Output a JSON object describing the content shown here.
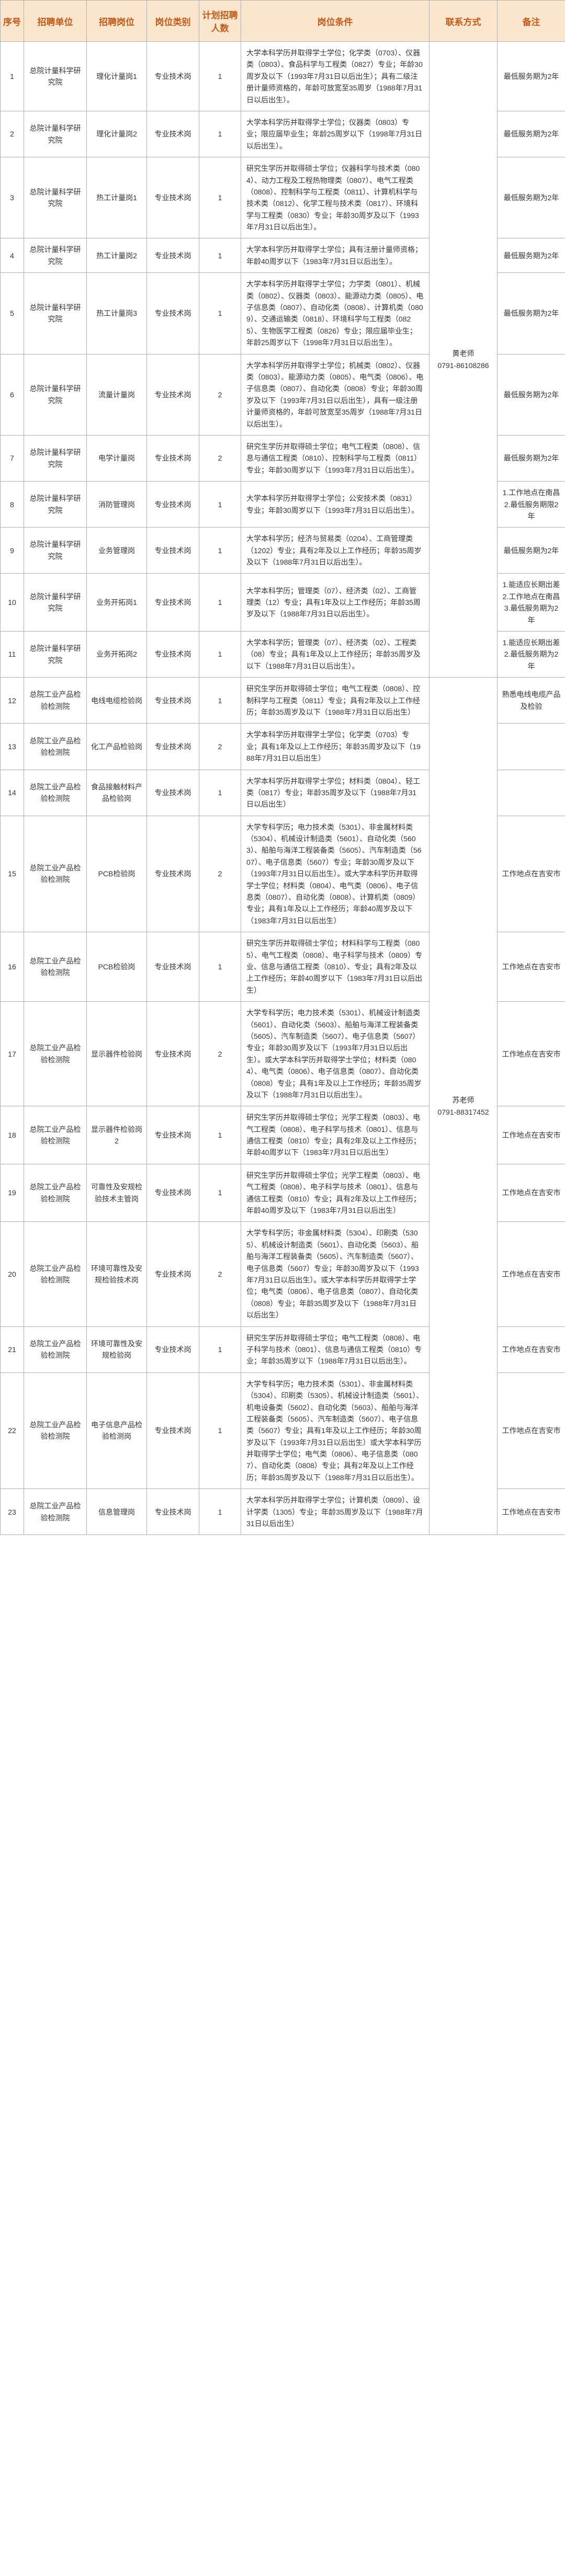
{
  "headers": [
    "序号",
    "招聘单位",
    "招聘岗位",
    "岗位类别",
    "计划招聘人数",
    "岗位条件",
    "联系方式",
    "备注"
  ],
  "rows": [
    {
      "idx": "1",
      "unit": "总院计量科学研究院",
      "post": "理化计量岗1",
      "type": "专业技术岗",
      "num": "1",
      "cond": "大学本科学历并取得学士学位；化学类（0703）、仪器类（0803）、食品科学与工程类（0827）专业；年龄30周岁及以下（1993年7月31日以后出生）；具有二级注册计量师资格的，年龄可放宽至35周岁（1988年7月31日以后出生）。",
      "note": "最低服务期为2年"
    },
    {
      "idx": "2",
      "unit": "总院计量科学研究院",
      "post": "理化计量岗2",
      "type": "专业技术岗",
      "num": "1",
      "cond": "大学本科学历并取得学士学位；仪器类（0803）专业；限应届毕业生；年龄25周岁以下（1998年7月31日以后出生）。",
      "note": "最低服务期为2年"
    },
    {
      "idx": "3",
      "unit": "总院计量科学研究院",
      "post": "热工计量岗1",
      "type": "专业技术岗",
      "num": "1",
      "cond": "研究生学历并取得硕士学位；仪器科学与技术类（0804）、动力工程及工程热物理类（0807）、电气工程类（0808）、控制科学与工程类（0811）、计算机科学与技术类（0812）、化学工程与技术类（0817）、环境科学与工程类（0830）专业；年龄30周岁及以下（1993年7月31日以后出生）。",
      "note": "最低服务期为2年"
    },
    {
      "idx": "4",
      "unit": "总院计量科学研究院",
      "post": "热工计量岗2",
      "type": "专业技术岗",
      "num": "1",
      "cond": "大学本科学历并取得学士学位；具有注册计量师资格；年龄40周岁以下（1983年7月31日以后出生）。",
      "note": "最低服务期为2年"
    },
    {
      "idx": "5",
      "unit": "总院计量科学研究院",
      "post": "热工计量岗3",
      "type": "专业技术岗",
      "num": "1",
      "cond": "大学本科学历并取得学士学位；力学类（0801）、机械类（0802）、仪器类（0803）、能源动力类（0805）、电子信息类（0807）、自动化类（0808）、计算机类（0809）、交通运输类（0818）、环境科学与工程类（0825）、生物医学工程类（0826）专业；限应届毕业生；年龄25周岁以下（1998年7月31日以后出生）。",
      "note": "最低服务期为2年"
    },
    {
      "idx": "6",
      "unit": "总院计量科学研究院",
      "post": "流量计量岗",
      "type": "专业技术岗",
      "num": "2",
      "cond": "大学本科学历并取得学士学位；机械类（0802）、仪器类（0803）、能源动力类（0805）、电气类（0806）、电子信息类（0807）、自动化类（0808）专业；年龄30周岁及以下（1993年7月31日以后出生），具有一级注册计量师资格的，年龄可放宽至35周岁（1988年7月31日以后出生）。",
      "note": "最低服务期为2年"
    },
    {
      "idx": "7",
      "unit": "总院计量科学研究院",
      "post": "电学计量岗",
      "type": "专业技术岗",
      "num": "2",
      "cond": "研究生学历并取得硕士学位；电气工程类（0808）、信息与通信工程类（0810）、控制科学与工程类（0811）专业；年龄30周岁以下（1993年7月31日以后出生）。",
      "note": "最低服务期为2年"
    },
    {
      "idx": "8",
      "unit": "总院计量科学研究院",
      "post": "消防管理岗",
      "type": "专业技术岗",
      "num": "1",
      "cond": "大学本科学历并取得学士学位；公安技术类（0831）专业；年龄30周岁以下（1993年7月31日以后出生）。",
      "note": "1.工作地点在南昌 2.最低服务期限2年"
    },
    {
      "idx": "9",
      "unit": "总院计量科学研究院",
      "post": "业务管理岗",
      "type": "专业技术岗",
      "num": "1",
      "cond": "大学本科学历；经济与贸易类（0204）、工商管理类（1202）专业；具有2年及以上工作经历；年龄35周岁及以下（1988年7月31日以后出生）。",
      "note": "最低服务期为2年"
    },
    {
      "idx": "10",
      "unit": "总院计量科学研究院",
      "post": "业务开拓岗1",
      "type": "专业技术岗",
      "num": "1",
      "cond": "大学本科学历；管理类（07）、经济类（02）、工商管理类（12）专业；具有1年及以上工作经历；年龄35周岁及以下（1988年7月31日以后出生）。",
      "note": "1.能适应长期出差 2.工作地点在南昌 3.最低服务期为2年"
    },
    {
      "idx": "11",
      "unit": "总院计量科学研究院",
      "post": "业务开拓岗2",
      "type": "专业技术岗",
      "num": "1",
      "cond": "大学本科学历；管理类（07）、经济类（02）、工程类（08）专业；具有1年及以上工作经历；年龄35周岁及以下（1988年7月31日以后出生）。",
      "note": "1.能适应长期出差 2.最低服务期为2年"
    },
    {
      "idx": "12",
      "unit": "总院工业产品检验检测院",
      "post": "电线电缆检验岗",
      "type": "专业技术岗",
      "num": "1",
      "cond": "研究生学历并取得硕士学位；电气工程类（0808）、控制科学与工程类（0811）专业；具有2年及以上工作经历；年龄35周岁及以下（1988年7月31日以后出生）",
      "note": "熟悉电线电缆产品及检验"
    },
    {
      "idx": "13",
      "unit": "总院工业产品检验检测院",
      "post": "化工产品检验岗",
      "type": "专业技术岗",
      "num": "2",
      "cond": "大学本科学历并取得学士学位；化学类（0703）专业；具有1年及以上工作经历；年龄35周岁及以下（1988年7月31日以后出生）",
      "note": ""
    },
    {
      "idx": "14",
      "unit": "总院工业产品检验检测院",
      "post": "食品接触材料产品检验岗",
      "type": "专业技术岗",
      "num": "1",
      "cond": "大学本科学历并取得学士学位；材料类（0804）、轻工类（0817）专业；年龄35周岁及以下（1988年7月31日以后出生）",
      "note": ""
    },
    {
      "idx": "15",
      "unit": "总院工业产品检验检测院",
      "post": "PCB检验岗",
      "type": "专业技术岗",
      "num": "2",
      "cond": "大学专科学历；电力技术类（5301）、非金属材料类（5304）、机械设计制造类（5601）、自动化类（5603）、船舶与海洋工程装备类（5605）、汽车制造类（5607）、电子信息类（5607）专业；年龄30周岁及以下（1993年7月31日以后出生）。或大学本科学历并取得学士学位；材料类（0804）、电气类（0806）、电子信息类（0807）、自动化类（0808）、计算机类（0809）专业；具有1年及以上工作经历；年龄40周岁及以下（1983年7月31日以后出生）",
      "note": "工作地点在吉安市"
    },
    {
      "idx": "16",
      "unit": "总院工业产品检验检测院",
      "post": "PCB检验岗",
      "type": "专业技术岗",
      "num": "1",
      "cond": "研究生学历并取得硕士学位；材料科学与工程类（0805）、电气工程类（0808）、电子科学与技术（0809）专业、信息与通信工程类（0810）、专业；具有2年及以上工作经历；年龄40周岁以下（1983年7月31日以后出生）",
      "note": "工作地点在吉安市"
    },
    {
      "idx": "17",
      "unit": "总院工业产品检验检测院",
      "post": "显示器件检验岗",
      "type": "专业技术岗",
      "num": "2",
      "cond": "大学专科学历；电力技术类（5301）、机械设计制造类（5601）、自动化类（5603）、船舶与海洋工程装备类（5605）、汽车制造类（5607）、电子信息类（5607）专业；年龄30周岁及以下（1993年7月31日以后出生）。或大学本科学历并取得学士学位；材料类（0804）、电气类（0806）、电子信息类（0807）、自动化类（0808）专业；具有1年及以上工作经历；年龄35周岁及以下（1988年7月31日以后出生）。",
      "note": "工作地点在吉安市"
    },
    {
      "idx": "18",
      "unit": "总院工业产品检验检测院",
      "post": "显示器件检验岗2",
      "type": "专业技术岗",
      "num": "1",
      "cond": "研究生学历并取得硕士学位；光学工程类（0803）、电气工程类（0808）、电子科学与技术（0801）、信息与通信工程类（0810）专业；具有2年及以上工作经历；年龄40周岁以下（1983年7月31日以后出生）",
      "note": "工作地点在吉安市"
    },
    {
      "idx": "19",
      "unit": "总院工业产品检验检测院",
      "post": "可靠性及安规检验技术主管岗",
      "type": "专业技术岗",
      "num": "1",
      "cond": "研究生学历并取得硕士学位；光学工程类（0803）、电气工程类（0808）、电子科学与技术（0801）、信息与通信工程类（0810）专业；具有2年及以上工作经历；年龄40周岁及以下（1983年7月31日以后出生）",
      "note": "工作地点在吉安市"
    },
    {
      "idx": "20",
      "unit": "总院工业产品检验检测院",
      "post": "环境可靠性及安规检验技术岗",
      "type": "专业技术岗",
      "num": "2",
      "cond": "大学专科学历；非金属材料类（5304）、印刷类（5305）、机械设计制造类（5601）、自动化类（5603）、船舶与海洋工程装备类（5605）、汽车制造类（5607）、电子信息类（5607）专业；年龄30周岁及以下（1993年7月31日以后出生）。或大学本科学历并取得学士学位；电气类（0806）、电子信息类（0807）、自动化类（0808）专业；年龄35周岁及以下（1988年7月31日以后出生）",
      "note": "工作地点在吉安市"
    },
    {
      "idx": "21",
      "unit": "总院工业产品检验检测院",
      "post": "环境可靠性及安规检验岗",
      "type": "专业技术岗",
      "num": "1",
      "cond": "研究生学历并取得硕士学位；电气工程类（0808）、电子科学与技术（0801）、信息与通信工程类（0810）专业；年龄35周岁以下（1988年7月31日以后出生）。",
      "note": "工作地点在吉安市"
    },
    {
      "idx": "22",
      "unit": "总院工业产品检验检测院",
      "post": "电子信息产品检验检测岗",
      "type": "专业技术岗",
      "num": "1",
      "cond": "大学专科学历；电力技术类（5301）、非金属材料类（5304）、印刷类（5305）、机械设计制造类（5601）、机电设备类（5602）、自动化类（5603）、船舶与海洋工程装备类（5605）、汽车制造类（5607）、电子信息类（5607）专业；具有1年及以上工作经历；年龄30周岁及以下（1993年7月31日以后出生）或大学本科学历并取得学士学位；电气类（0806）、电子信息类（0807）、自动化类（0808）专业；具有2年及以上工作经历；年龄35周岁及以下（1988年7月31日以后出生）。",
      "note": "工作地点在吉安市"
    },
    {
      "idx": "23",
      "unit": "总院工业产品检验检测院",
      "post": "信息管理岗",
      "type": "专业技术岗",
      "num": "1",
      "cond": "大学本科学历并取得学士学位；计算机类（0809）、设计学类（1305）专业；年龄35周岁及以下（1988年7月31日以后出生）",
      "note": "工作地点在吉安市"
    }
  ],
  "contacts": [
    {
      "span": 11,
      "text": "黄老师\n0791-86108286"
    },
    {
      "span": 12,
      "text": "苏老师\n0791-88317452"
    }
  ]
}
